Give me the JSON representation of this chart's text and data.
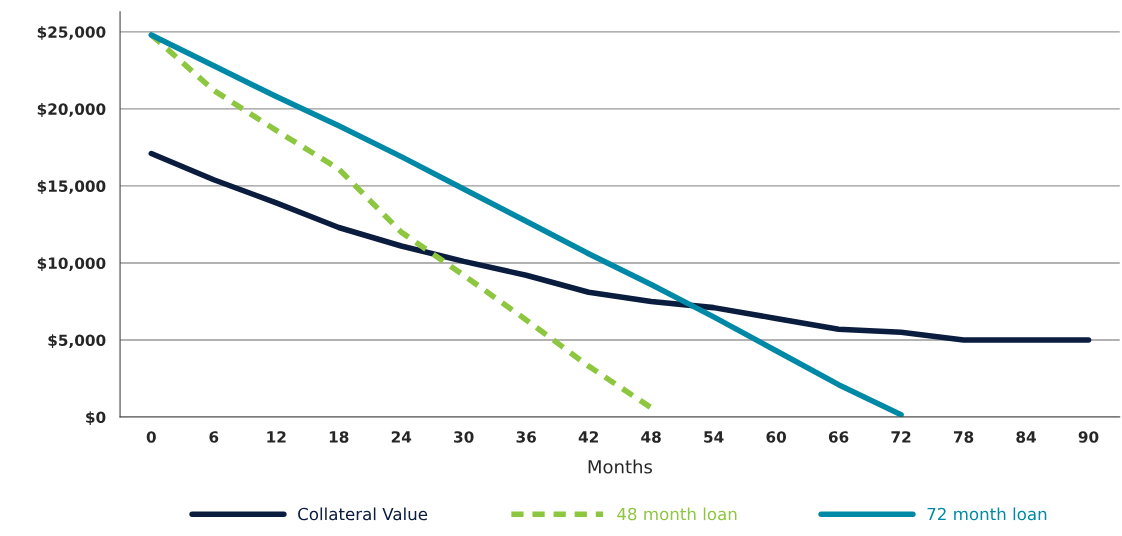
{
  "chart_data": {
    "type": "line",
    "xlabel": "Months",
    "categories": [
      "0",
      "6",
      "12",
      "18",
      "24",
      "30",
      "36",
      "42",
      "48",
      "54",
      "60",
      "66",
      "72",
      "78",
      "84",
      "90"
    ],
    "series": [
      {
        "name": "Collateral Value",
        "color": "#0b1d3f",
        "line_style": "solid",
        "values": [
          17100,
          15400,
          13900,
          12300,
          11100,
          10100,
          9200,
          8100,
          7500,
          7100,
          6400,
          5700,
          5500,
          5000,
          5000,
          5000
        ]
      },
      {
        "name": "48 month loan",
        "color": "#8dc63f",
        "line_style": "dashed",
        "values": [
          24800,
          21200,
          18600,
          16100,
          12000,
          9200,
          6300,
          3300,
          600,
          null,
          null,
          null,
          null,
          null,
          null,
          null
        ]
      },
      {
        "name": "72 month loan",
        "color": "#0089a6",
        "line_style": "solid",
        "values": [
          24800,
          22800,
          20800,
          18900,
          16900,
          14800,
          12700,
          10600,
          8600,
          6500,
          4300,
          2100,
          150,
          null,
          null,
          null
        ]
      }
    ],
    "ylim": [
      0,
      26300
    ],
    "yticks": [
      {
        "value": 0,
        "label": "$0"
      },
      {
        "value": 5000,
        "label": "$5,000"
      },
      {
        "value": 10000,
        "label": "$10,000"
      },
      {
        "value": 15000,
        "label": "$15,000"
      },
      {
        "value": 20000,
        "label": "$20,000"
      },
      {
        "value": 25000,
        "label": "$25,000"
      }
    ],
    "grid": "y",
    "legend": "bottom",
    "marker": "none"
  }
}
